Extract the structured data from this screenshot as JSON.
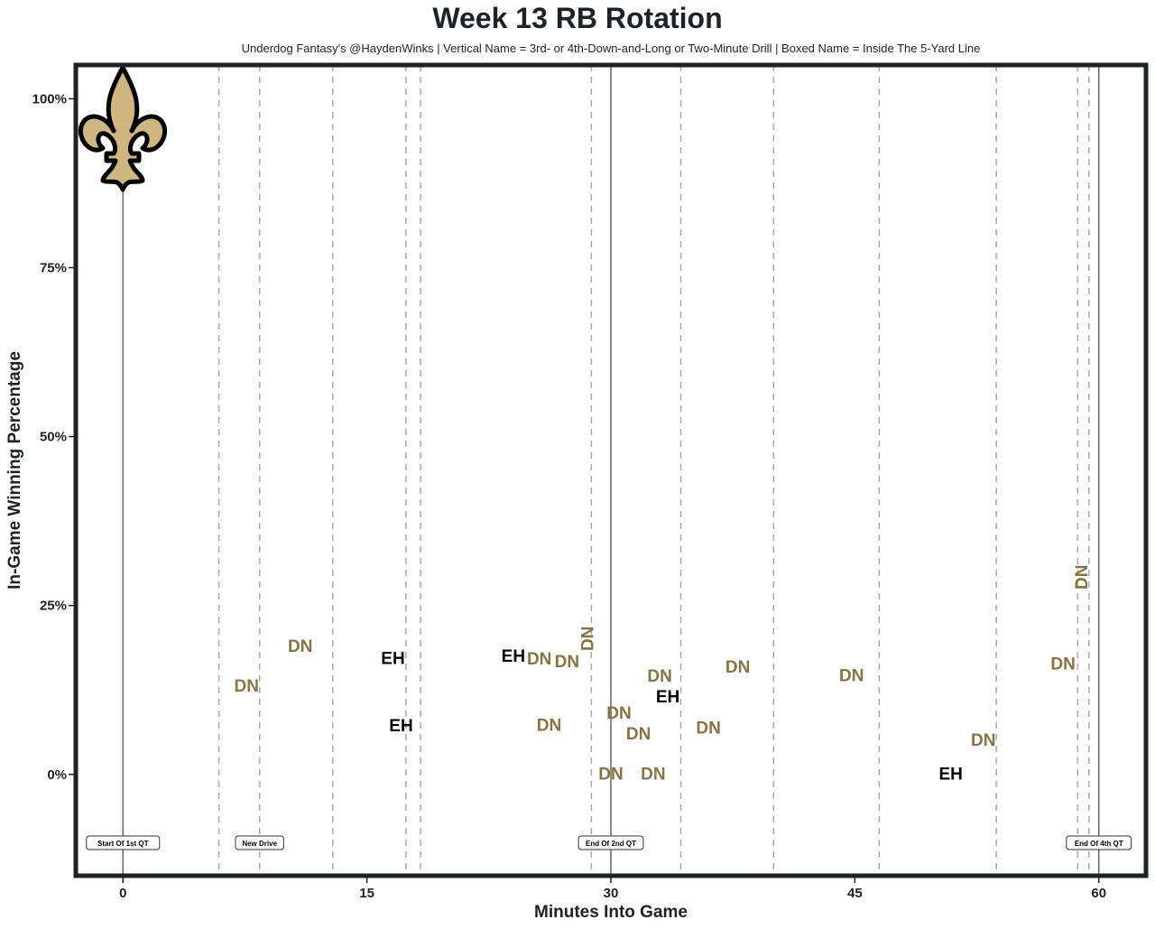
{
  "chart_data": {
    "type": "scatter",
    "title": "Week 13 RB Rotation",
    "subtitle": "Underdog Fantasy's @HaydenWinks | Vertical Name = 3rd- or 4th-Down-and-Long or Two-Minute Drill | Boxed Name = Inside The 5-Yard Line",
    "xlabel": "Minutes Into Game",
    "ylabel": "In-Game Winning Percentage",
    "xlim": [
      -2.9,
      62.9
    ],
    "ylim": [
      -15,
      105
    ],
    "xticks": [
      0,
      15,
      30,
      45,
      60
    ],
    "xtick_labels": [
      "0",
      "15",
      "30",
      "45",
      "60"
    ],
    "yticks": [
      0,
      25,
      50,
      75,
      100
    ],
    "ytick_labels": [
      "0%",
      "25%",
      "50%",
      "75%",
      "100%"
    ],
    "grid": false,
    "colors": {
      "DN": "#8b7340",
      "EH": "#000000",
      "frame": "#1f2129"
    },
    "solid_lines": [
      0,
      30,
      60
    ],
    "drive_lines": [
      5.9,
      8.4,
      12.9,
      17.4,
      18.3,
      28.8,
      34.3,
      40.0,
      46.5,
      53.7,
      58.7,
      59.4
    ],
    "annotations": [
      {
        "x": 0,
        "text": "Start Of 1st QT"
      },
      {
        "x": 8.4,
        "text": "New Drive"
      },
      {
        "x": 30,
        "text": "End Of 2nd QT"
      },
      {
        "x": 60,
        "text": "End Of 4th QT"
      }
    ],
    "points": [
      {
        "label": "DN",
        "x": 7.6,
        "y": 13.0,
        "vertical": false
      },
      {
        "label": "DN",
        "x": 10.9,
        "y": 18.9,
        "vertical": false
      },
      {
        "label": "EH",
        "x": 16.6,
        "y": 17.1,
        "vertical": false
      },
      {
        "label": "EH",
        "x": 17.1,
        "y": 7.1,
        "vertical": false
      },
      {
        "label": "EH",
        "x": 24.0,
        "y": 17.4,
        "vertical": false
      },
      {
        "label": "DN",
        "x": 25.6,
        "y": 17.0,
        "vertical": false
      },
      {
        "label": "DN",
        "x": 27.3,
        "y": 16.9,
        "vertical": false
      },
      {
        "label": "DN",
        "x": 28.6,
        "y": 19.8,
        "vertical": true
      },
      {
        "label": "DN",
        "x": 26.2,
        "y": 7.2,
        "vertical": false
      },
      {
        "label": "DN",
        "x": 30.5,
        "y": 7.9,
        "vertical": false
      },
      {
        "label": "DN",
        "x": 31.7,
        "y": 7.0,
        "vertical": false
      },
      {
        "label": "DN",
        "x": 30.0,
        "y": 0.0,
        "vertical": false
      },
      {
        "label": "DN",
        "x": 32.6,
        "y": 0.0,
        "vertical": false
      },
      {
        "label": "DN",
        "x": 33.0,
        "y": 13.7,
        "vertical": false
      },
      {
        "label": "EH",
        "x": 33.5,
        "y": 12.2,
        "vertical": false
      },
      {
        "label": "DN",
        "x": 36.0,
        "y": 6.8,
        "vertical": false
      },
      {
        "label": "DN",
        "x": 37.8,
        "y": 15.8,
        "vertical": false
      },
      {
        "label": "DN",
        "x": 44.8,
        "y": 14.5,
        "vertical": false
      },
      {
        "label": "EH",
        "x": 50.9,
        "y": 0.0,
        "vertical": false
      },
      {
        "label": "DN",
        "x": 52.9,
        "y": 5.0,
        "vertical": false
      },
      {
        "label": "DN",
        "x": 57.8,
        "y": 16.3,
        "vertical": false
      },
      {
        "label": "DN",
        "x": 59.0,
        "y": 29.2,
        "vertical": true
      }
    ]
  }
}
